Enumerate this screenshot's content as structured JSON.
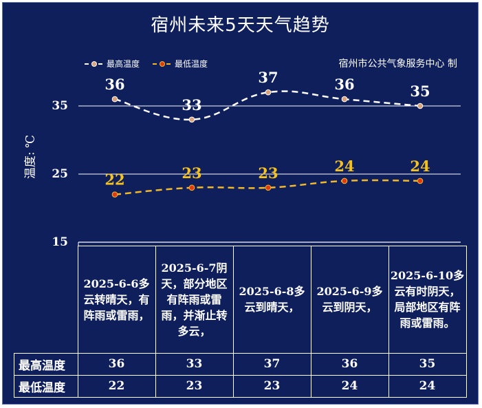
{
  "title": "宿州未来5天天气趋势",
  "producer": "宿州市公共气象服务中心 制",
  "colors": {
    "background": "#0f1f5c",
    "high_line": "#ffffff",
    "high_marker": "#d9a27a",
    "low_line": "#f2b92b",
    "low_marker": "#e03a10",
    "high_label": "#ffffff",
    "low_label": "#f5c220"
  },
  "chart_data": {
    "type": "line",
    "categories": [
      "2025-6-6",
      "2025-6-7",
      "2025-6-8",
      "2025-6-9",
      "2025-6-10"
    ],
    "ylabel": "温度: ℃",
    "ylim": [
      15,
      40
    ],
    "yticks": [
      "35",
      "25",
      "15"
    ],
    "grid": true,
    "legend_position": "top-left",
    "series": [
      {
        "name": "最高温度",
        "values": [
          36,
          33,
          37,
          36,
          35
        ]
      },
      {
        "name": "最低温度",
        "values": [
          22,
          23,
          23,
          24,
          24
        ]
      }
    ]
  },
  "table": {
    "descriptions": [
      "2025-6-6多云转晴天，有阵雨或雷雨，",
      "2025-6-7阴天，部分地区有阵雨或雷雨，并渐止转多云，",
      "2025-6-8多云到晴天，",
      "2025-6-9多云到阴天，",
      "2025-6-10多云有时阴天，局部地区有阵雨或雷雨。"
    ],
    "rows": [
      {
        "label": "最高温度",
        "values": [
          "36",
          "33",
          "37",
          "36",
          "35"
        ]
      },
      {
        "label": "最低温度",
        "values": [
          "22",
          "23",
          "23",
          "24",
          "24"
        ]
      }
    ]
  }
}
